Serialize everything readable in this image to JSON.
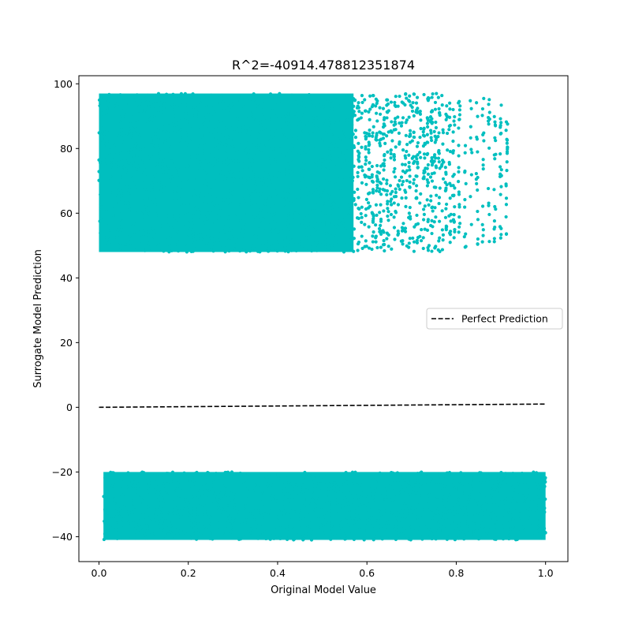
{
  "chart_data": {
    "type": "scatter",
    "title": "R^2=-40914.478812351874",
    "xlabel": "Original Model Value",
    "ylabel": "Surrogate Model Prediction",
    "xlim": [
      -0.045,
      1.05
    ],
    "ylim": [
      -47.7,
      102.5
    ],
    "xticks": [
      0.0,
      0.2,
      0.4,
      0.6,
      0.8,
      1.0
    ],
    "xtick_labels": [
      "0.0",
      "0.2",
      "0.4",
      "0.6",
      "0.8",
      "1.0"
    ],
    "yticks": [
      -40,
      -20,
      0,
      20,
      40,
      60,
      80,
      100
    ],
    "ytick_labels": [
      "−40",
      "−20",
      "0",
      "20",
      "40",
      "60",
      "80",
      "100"
    ],
    "grid": false,
    "legend": {
      "placement": "center-right",
      "entries": [
        {
          "label": "Perfect Prediction",
          "style": "dashed",
          "color": "#000000"
        }
      ]
    },
    "series": [
      {
        "kind": "point-cloud",
        "color": "#00bfbf",
        "clusters": [
          {
            "x_range": [
              0.0,
              0.57
            ],
            "y_range": [
              48,
              97
            ],
            "density": "solid"
          },
          {
            "x_range": [
              0.57,
              0.8
            ],
            "y_range": [
              48,
              97
            ],
            "density": "medium"
          },
          {
            "x_range": [
              0.8,
              0.92
            ],
            "y_range": [
              48,
              96
            ],
            "density": "sparse"
          },
          {
            "x_range": [
              0.01,
              1.0
            ],
            "y_range": [
              -41,
              -20
            ],
            "density": "solid"
          }
        ]
      },
      {
        "name": "Perfect Prediction",
        "kind": "line",
        "style": "dashed",
        "color": "#000000",
        "x": [
          0.0,
          1.0
        ],
        "y": [
          0.0,
          1.0
        ]
      }
    ]
  }
}
